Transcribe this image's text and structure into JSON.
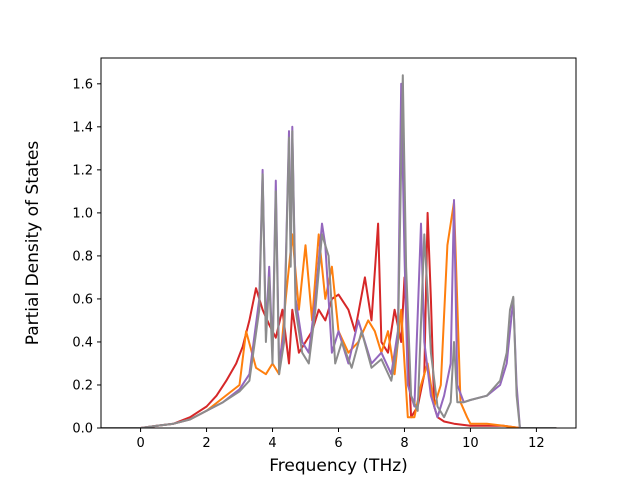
{
  "chart_data": {
    "type": "line",
    "title": "",
    "xlabel": "Frequency (THz)",
    "ylabel": "Partial Density of States",
    "xlim": [
      -1.2,
      13.2
    ],
    "ylim": [
      0,
      1.72
    ],
    "xticks": [
      0,
      2,
      4,
      6,
      8,
      10,
      12
    ],
    "yticks": [
      0.0,
      0.2,
      0.4,
      0.6,
      0.8,
      1.0,
      1.2,
      1.4,
      1.6
    ],
    "xtick_labels": [
      "0",
      "2",
      "4",
      "6",
      "8",
      "10",
      "12"
    ],
    "ytick_labels": [
      "0.0",
      "0.2",
      "0.4",
      "0.6",
      "0.8",
      "1.0",
      "1.2",
      "1.4",
      "1.6"
    ],
    "grid": false,
    "legend": "none",
    "series": [
      {
        "color": "#d62728",
        "x": [
          -1.2,
          0.0,
          0.5,
          1.0,
          1.5,
          2.0,
          2.3,
          2.6,
          2.9,
          3.1,
          3.3,
          3.5,
          3.7,
          3.9,
          4.1,
          4.3,
          4.5,
          4.6,
          4.8,
          5.0,
          5.2,
          5.4,
          5.6,
          5.8,
          6.0,
          6.3,
          6.5,
          6.8,
          7.0,
          7.2,
          7.3,
          7.5,
          7.7,
          7.9,
          8.0,
          8.2,
          8.4,
          8.6,
          8.7,
          8.8,
          8.9,
          9.0,
          9.2,
          9.5,
          10.0,
          11.0,
          11.5,
          12.6
        ],
        "y": [
          0.0,
          0.0,
          0.01,
          0.02,
          0.05,
          0.1,
          0.15,
          0.22,
          0.3,
          0.38,
          0.5,
          0.65,
          0.55,
          0.48,
          0.42,
          0.55,
          0.3,
          0.55,
          0.35,
          0.4,
          0.45,
          0.55,
          0.5,
          0.6,
          0.62,
          0.55,
          0.45,
          0.7,
          0.5,
          0.95,
          0.4,
          0.35,
          0.55,
          0.4,
          0.7,
          0.05,
          0.1,
          0.25,
          1.0,
          0.6,
          0.1,
          0.05,
          0.03,
          0.02,
          0.01,
          0.01,
          0.0,
          0.0
        ]
      },
      {
        "color": "#ff7f0e",
        "x": [
          -1.2,
          0.0,
          0.5,
          1.0,
          1.5,
          2.0,
          2.5,
          3.0,
          3.2,
          3.5,
          3.8,
          4.0,
          4.2,
          4.4,
          4.6,
          4.8,
          5.0,
          5.2,
          5.4,
          5.6,
          5.8,
          6.0,
          6.3,
          6.6,
          6.9,
          7.1,
          7.3,
          7.5,
          7.7,
          7.9,
          8.1,
          8.3,
          8.5,
          8.7,
          8.9,
          9.1,
          9.3,
          9.5,
          9.7,
          9.9,
          10.0,
          10.5,
          11.0,
          11.5,
          12.6
        ],
        "y": [
          0.0,
          0.0,
          0.01,
          0.02,
          0.04,
          0.08,
          0.14,
          0.2,
          0.45,
          0.28,
          0.25,
          0.3,
          0.25,
          0.6,
          0.9,
          0.55,
          0.85,
          0.5,
          0.9,
          0.6,
          0.75,
          0.45,
          0.35,
          0.4,
          0.5,
          0.45,
          0.35,
          0.45,
          0.25,
          0.55,
          0.05,
          0.05,
          0.2,
          0.3,
          0.1,
          0.2,
          0.85,
          1.05,
          0.12,
          0.05,
          0.02,
          0.02,
          0.01,
          0.0,
          0.0
        ]
      },
      {
        "color": "#9467bd",
        "x": [
          -1.2,
          0.0,
          0.5,
          1.0,
          1.5,
          2.0,
          2.5,
          3.0,
          3.3,
          3.6,
          3.7,
          3.8,
          3.9,
          4.0,
          4.1,
          4.2,
          4.35,
          4.5,
          4.55,
          4.6,
          4.7,
          4.9,
          5.1,
          5.3,
          5.5,
          5.6,
          5.8,
          6.0,
          6.3,
          6.6,
          7.0,
          7.3,
          7.6,
          7.8,
          7.9,
          8.0,
          8.1,
          8.3,
          8.5,
          8.6,
          8.8,
          9.0,
          9.2,
          9.4,
          9.5,
          9.6,
          9.8,
          10.0,
          10.5,
          10.9,
          11.1,
          11.2,
          11.3,
          11.4,
          11.5,
          12.6
        ],
        "y": [
          0.0,
          0.0,
          0.01,
          0.02,
          0.04,
          0.08,
          0.12,
          0.18,
          0.25,
          0.6,
          1.2,
          0.45,
          0.75,
          0.35,
          1.15,
          0.3,
          0.45,
          1.38,
          0.8,
          1.4,
          0.6,
          0.4,
          0.35,
          0.6,
          0.95,
          0.85,
          0.35,
          0.45,
          0.3,
          0.5,
          0.3,
          0.35,
          0.25,
          0.45,
          1.6,
          0.8,
          0.2,
          0.1,
          0.95,
          0.4,
          0.15,
          0.05,
          0.15,
          0.3,
          1.06,
          0.2,
          0.12,
          0.13,
          0.15,
          0.2,
          0.3,
          0.45,
          0.6,
          0.2,
          0.0,
          0.0
        ]
      },
      {
        "color": "#8c8c8c",
        "x": [
          -1.2,
          0.0,
          0.5,
          1.0,
          1.5,
          2.0,
          2.5,
          3.0,
          3.3,
          3.6,
          3.7,
          3.8,
          3.9,
          4.0,
          4.1,
          4.2,
          4.35,
          4.5,
          4.55,
          4.6,
          4.7,
          4.9,
          5.1,
          5.3,
          5.5,
          5.7,
          5.9,
          6.1,
          6.4,
          6.7,
          7.0,
          7.3,
          7.6,
          7.8,
          7.95,
          8.05,
          8.2,
          8.4,
          8.6,
          8.8,
          9.0,
          9.2,
          9.4,
          9.5,
          9.6,
          9.8,
          10.0,
          10.5,
          10.9,
          11.1,
          11.2,
          11.3,
          11.4,
          11.5,
          12.6
        ],
        "y": [
          0.0,
          0.0,
          0.01,
          0.02,
          0.04,
          0.08,
          0.12,
          0.17,
          0.22,
          0.55,
          1.18,
          0.4,
          0.7,
          0.3,
          1.1,
          0.25,
          0.4,
          1.35,
          0.75,
          1.38,
          0.55,
          0.35,
          0.3,
          0.55,
          0.9,
          0.8,
          0.3,
          0.4,
          0.28,
          0.45,
          0.28,
          0.32,
          0.22,
          0.4,
          1.64,
          0.75,
          0.15,
          0.08,
          0.9,
          0.35,
          0.1,
          0.05,
          0.12,
          0.4,
          0.12,
          0.12,
          0.13,
          0.15,
          0.22,
          0.35,
          0.55,
          0.61,
          0.15,
          0.0,
          0.0
        ]
      }
    ]
  }
}
